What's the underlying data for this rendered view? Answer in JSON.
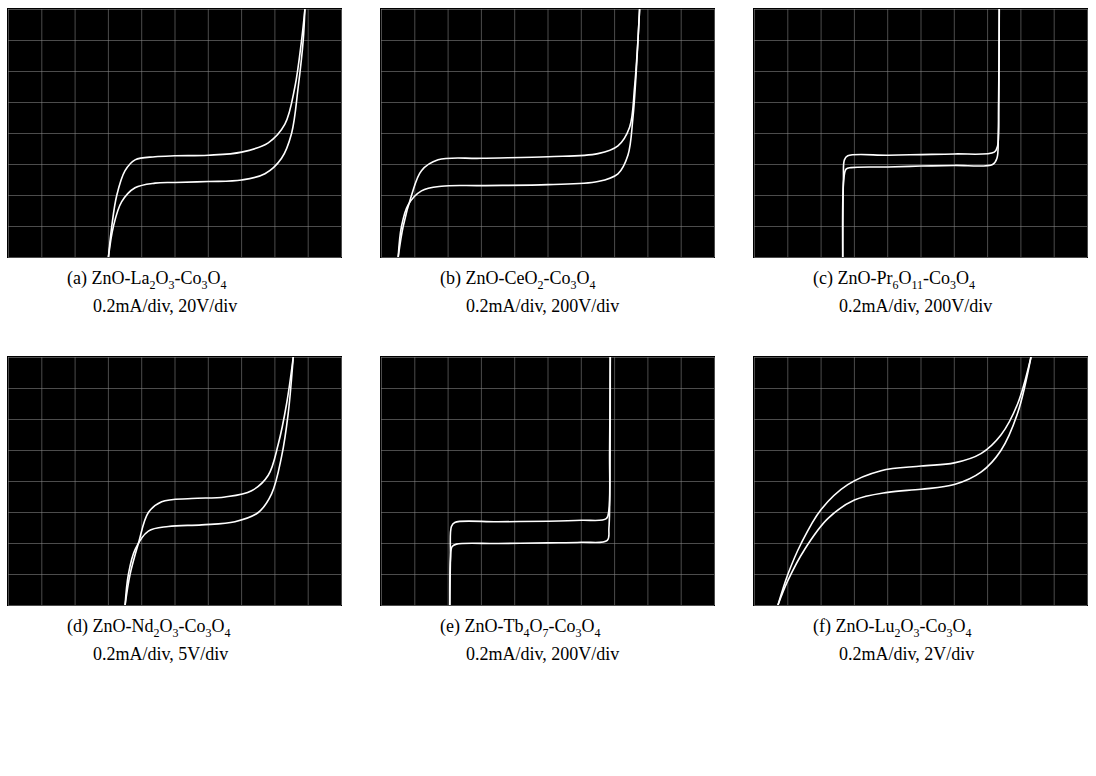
{
  "chart_data": [
    {
      "type": "line",
      "title": "(a) ZnO-La2O3-Co3O4",
      "subtitle": "0.2mA/div, 20V/div",
      "xlim": [
        -5,
        5
      ],
      "ylim": [
        -4,
        4
      ],
      "xticks": [
        -5,
        -4,
        -3,
        -2,
        -1,
        0,
        1,
        2,
        3,
        4,
        5
      ],
      "yticks": [
        -4,
        -3,
        -2,
        -1,
        0,
        1,
        2,
        3,
        4
      ],
      "grid": true,
      "tick_labels": false,
      "series": [
        {
          "color": "#ffffff",
          "x": [
            -2.0,
            -1.9,
            -1.75,
            -1.5,
            -1.2,
            -0.6,
            0,
            1,
            2,
            2.8,
            3.3,
            3.6,
            3.8,
            3.9
          ],
          "values": [
            -4,
            -3,
            -2,
            -1.2,
            -0.85,
            -0.75,
            -0.72,
            -0.7,
            -0.6,
            -0.3,
            0.3,
            1.5,
            3,
            4
          ]
        },
        {
          "color": "#ffffff",
          "x": [
            -2.0,
            -1.85,
            -1.6,
            -1.2,
            -0.6,
            0,
            1,
            2,
            2.7,
            3.2,
            3.5,
            3.7,
            3.85,
            3.9
          ],
          "values": [
            -4,
            -3,
            -2.2,
            -1.75,
            -1.6,
            -1.58,
            -1.55,
            -1.5,
            -1.3,
            -0.8,
            0,
            1.5,
            3,
            4
          ]
        }
      ]
    },
    {
      "type": "line",
      "title": "(b) ZnO-CeO2-Co3O4",
      "subtitle": "0.2mA/div, 200V/div",
      "xlim": [
        -5,
        5
      ],
      "ylim": [
        -4,
        4
      ],
      "xticks": [
        -5,
        -4,
        -3,
        -2,
        -1,
        0,
        1,
        2,
        3,
        4,
        5
      ],
      "yticks": [
        -4,
        -3,
        -2,
        -1,
        0,
        1,
        2,
        3,
        4
      ],
      "grid": true,
      "tick_labels": false,
      "series": [
        {
          "color": "#ffffff",
          "x": [
            -4.5,
            -4.35,
            -4.1,
            -3.8,
            -3.3,
            -2,
            0,
            1.5,
            2.1,
            2.45,
            2.6,
            2.7,
            2.75
          ],
          "values": [
            -4,
            -3,
            -2,
            -1.2,
            -0.85,
            -0.8,
            -0.75,
            -0.65,
            -0.4,
            0.2,
            1.5,
            3,
            4
          ]
        },
        {
          "color": "#ffffff",
          "x": [
            -4.5,
            -4.4,
            -4.2,
            -3.8,
            -3.2,
            -2,
            0,
            1.5,
            2.1,
            2.4,
            2.55,
            2.65,
            2.75
          ],
          "values": [
            -4,
            -3,
            -2.3,
            -1.85,
            -1.7,
            -1.68,
            -1.65,
            -1.55,
            -1.3,
            -0.7,
            0.5,
            2,
            4
          ]
        }
      ]
    },
    {
      "type": "line",
      "title": "(c) ZnO-Pr6O11-Co3O4",
      "subtitle": "0.2mA/div, 200V/div",
      "xlim": [
        -5,
        5
      ],
      "ylim": [
        -4,
        4
      ],
      "xticks": [
        -5,
        -4,
        -3,
        -2,
        -1,
        0,
        1,
        2,
        3,
        4,
        5
      ],
      "yticks": [
        -4,
        -3,
        -2,
        -1,
        0,
        1,
        2,
        3,
        4
      ],
      "grid": true,
      "tick_labels": false,
      "series": [
        {
          "color": "#ffffff",
          "x": [
            -2.35,
            -2.33,
            -2.3,
            -2.2,
            -1,
            0,
            1,
            2.2,
            2.3,
            2.33,
            2.35
          ],
          "values": [
            -4,
            -1.5,
            -0.85,
            -0.72,
            -0.7,
            -0.68,
            -0.66,
            -0.6,
            -0.4,
            1,
            4
          ]
        },
        {
          "color": "#ffffff",
          "x": [
            -2.35,
            -2.32,
            -2.25,
            -2.1,
            -1,
            0,
            1,
            2.15,
            2.28,
            2.32,
            2.35
          ],
          "values": [
            -4,
            -1.5,
            -1.15,
            -1.1,
            -1.08,
            -1.05,
            -1.03,
            -1.0,
            -0.8,
            0,
            4
          ]
        }
      ]
    },
    {
      "type": "line",
      "title": "(d) ZnO-Nd2O3-Co3O4",
      "subtitle": "0.2mA/div, 5V/div",
      "xlim": [
        -5,
        5
      ],
      "ylim": [
        -4,
        4
      ],
      "xticks": [
        -5,
        -4,
        -3,
        -2,
        -1,
        0,
        1,
        2,
        3,
        4,
        5
      ],
      "yticks": [
        -4,
        -3,
        -2,
        -1,
        0,
        1,
        2,
        3,
        4
      ],
      "grid": true,
      "tick_labels": false,
      "series": [
        {
          "color": "#ffffff",
          "x": [
            -1.5,
            -1.35,
            -1.1,
            -0.8,
            -0.4,
            0.5,
            1.5,
            2.3,
            2.8,
            3.1,
            3.35,
            3.55
          ],
          "values": [
            -4,
            -3,
            -2,
            -1.0,
            -0.65,
            -0.55,
            -0.5,
            -0.3,
            0.2,
            1.2,
            2.5,
            4
          ]
        },
        {
          "color": "#ffffff",
          "x": [
            -1.5,
            -1.4,
            -1.2,
            -0.8,
            -0.2,
            0.8,
            1.8,
            2.5,
            2.9,
            3.2,
            3.4,
            3.55
          ],
          "values": [
            -4,
            -3,
            -2.2,
            -1.6,
            -1.45,
            -1.4,
            -1.3,
            -1.0,
            -0.4,
            0.8,
            2.2,
            4
          ]
        }
      ]
    },
    {
      "type": "line",
      "title": "(e) ZnO-Tb4O7-Co3O4",
      "subtitle": "0.2mA/div, 200V/div",
      "xlim": [
        -5,
        5
      ],
      "ylim": [
        -4,
        4
      ],
      "xticks": [
        -5,
        -4,
        -3,
        -2,
        -1,
        0,
        1,
        2,
        3,
        4,
        5
      ],
      "yticks": [
        -4,
        -3,
        -2,
        -1,
        0,
        1,
        2,
        3,
        4
      ],
      "grid": true,
      "tick_labels": false,
      "series": [
        {
          "color": "#ffffff",
          "x": [
            -2.95,
            -2.93,
            -2.9,
            -2.8,
            -1.5,
            0,
            1,
            1.75,
            1.83,
            1.85,
            1.87
          ],
          "values": [
            -4,
            -2.5,
            -1.45,
            -1.32,
            -1.3,
            -1.28,
            -1.25,
            -1.2,
            -0.9,
            1,
            4
          ]
        },
        {
          "color": "#ffffff",
          "x": [
            -2.95,
            -2.93,
            -2.88,
            -2.75,
            -1.5,
            0,
            1,
            1.78,
            1.83,
            1.86,
            1.87
          ],
          "values": [
            -4,
            -2.5,
            -2.1,
            -2.02,
            -2.0,
            -1.98,
            -1.96,
            -1.9,
            -1.5,
            0,
            4
          ]
        }
      ]
    },
    {
      "type": "line",
      "title": "(f) ZnO-Lu2O3-Co3O4",
      "subtitle": "0.2mA/div, 2V/div",
      "xlim": [
        -5,
        5
      ],
      "ylim": [
        -4,
        4
      ],
      "xticks": [
        -5,
        -4,
        -3,
        -2,
        -1,
        0,
        1,
        2,
        3,
        4,
        5
      ],
      "yticks": [
        -4,
        -3,
        -2,
        -1,
        0,
        1,
        2,
        3,
        4
      ],
      "grid": true,
      "tick_labels": false,
      "series": [
        {
          "color": "#ffffff",
          "x": [
            -4.3,
            -4.0,
            -3.6,
            -3.0,
            -2.2,
            -1.2,
            0,
            1,
            1.8,
            2.4,
            2.9,
            3.3
          ],
          "values": [
            -4,
            -3,
            -2,
            -0.9,
            -0.1,
            0.35,
            0.5,
            0.6,
            0.9,
            1.5,
            2.5,
            4
          ]
        },
        {
          "color": "#ffffff",
          "x": [
            -4.3,
            -4.0,
            -3.5,
            -2.8,
            -2,
            -1,
            0,
            1,
            1.8,
            2.4,
            2.9,
            3.3
          ],
          "values": [
            -4,
            -3.2,
            -2.2,
            -1.2,
            -0.6,
            -0.35,
            -0.25,
            -0.1,
            0.3,
            1.0,
            2.2,
            4
          ]
        }
      ]
    }
  ]
}
